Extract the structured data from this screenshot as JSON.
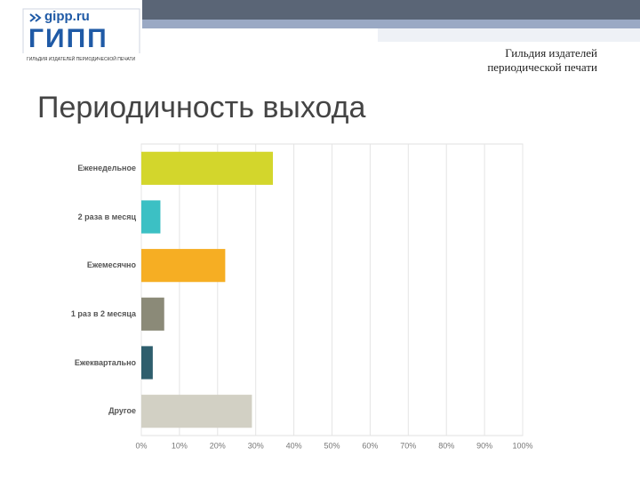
{
  "header": {
    "site": "gipp.ru",
    "logo": "ГИПП",
    "caption": "ГИЛЬДИЯ ИЗДАТЕЛЕЙ ПЕРИОДИЧЕСКОЙ ПЕЧАТИ",
    "org_line1": "Гильдия издателей",
    "org_line2": "периодической печати"
  },
  "chart_data": {
    "type": "hbar",
    "title": "Периодичность выхода",
    "categories": [
      "Еженедельное",
      "2 раза в месяц",
      "Ежемесячно",
      "1 раз в 2 месяца",
      "Ежеквартально",
      "Другое"
    ],
    "values": [
      34.5,
      5,
      22,
      6,
      3,
      29
    ],
    "colors": [
      "#d3d62c",
      "#3cc0c4",
      "#f6ae23",
      "#8b8a78",
      "#2e5e6d",
      "#d2d0c4"
    ],
    "xlim": [
      0,
      100
    ],
    "xticks": [
      {
        "value": 0,
        "label": "0%"
      },
      {
        "value": 10,
        "label": "10%"
      },
      {
        "value": 20,
        "label": "20%"
      },
      {
        "value": 30,
        "label": "30%"
      },
      {
        "value": 40,
        "label": "40%"
      },
      {
        "value": 50,
        "label": "50%"
      },
      {
        "value": 60,
        "label": "60%"
      },
      {
        "value": 70,
        "label": "70%"
      },
      {
        "value": 80,
        "label": "80%"
      },
      {
        "value": 90,
        "label": "90%"
      },
      {
        "value": 100,
        "label": "100%"
      }
    ],
    "grid": true
  }
}
